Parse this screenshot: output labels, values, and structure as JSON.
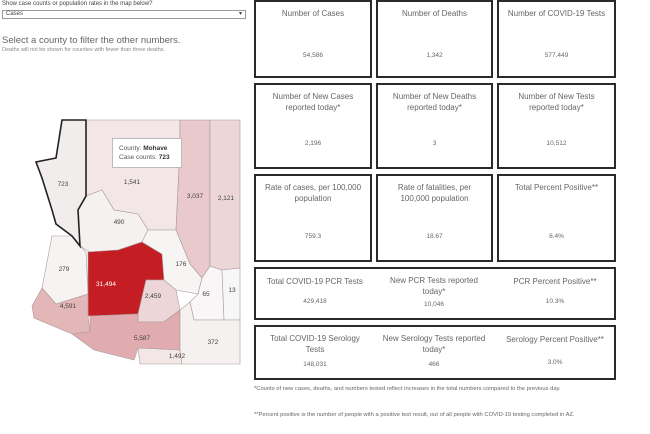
{
  "controls": {
    "filter_label": "Show case counts or population rates in the map below?",
    "dropdown_value": "Cases",
    "select_hint": "Select a county to filter the other numbers.",
    "select_note": "Deaths will not be shown for counties with fewer than three deaths."
  },
  "tooltip": {
    "county_label": "County:",
    "county_value": "Mohave",
    "cases_label": "Case counts:",
    "cases_value": "723"
  },
  "map": {
    "counties": [
      {
        "name": "Mohave",
        "value": "723",
        "color": "#f2eded"
      },
      {
        "name": "Coconino",
        "value": "1,541",
        "color": "#f3e6e6"
      },
      {
        "name": "Navajo",
        "value": "3,037",
        "color": "#e9c9cb"
      },
      {
        "name": "Apache",
        "value": "2,121",
        "color": "#ecd6d7"
      },
      {
        "name": "Yavapai",
        "value": "490",
        "color": "#f5f1f1"
      },
      {
        "name": "La Paz",
        "value": "279",
        "color": "#f7f3f3"
      },
      {
        "name": "Maricopa",
        "value": "31,494",
        "color": "#c41e24"
      },
      {
        "name": "Gila",
        "value": "176",
        "color": "#f7f4f4"
      },
      {
        "name": "Pinal",
        "value": "2,459",
        "color": "#ecd6d7"
      },
      {
        "name": "Graham",
        "value": "65",
        "color": "#f8f6f6"
      },
      {
        "name": "Greenlee",
        "value": "13",
        "color": "#f8f7f7"
      },
      {
        "name": "Yuma",
        "value": "4,591",
        "color": "#e3b6b8"
      },
      {
        "name": "Pima",
        "value": "5,587",
        "color": "#e0acaf"
      },
      {
        "name": "Santa Cruz",
        "value": "1,492",
        "color": "#f2e6e6"
      },
      {
        "name": "Cochise",
        "value": "372",
        "color": "#f6f1f1"
      }
    ]
  },
  "stats": {
    "cases": {
      "title": "Number of Cases",
      "value": "54,586"
    },
    "deaths": {
      "title": "Number of Deaths",
      "value": "1,342"
    },
    "tests": {
      "title": "Number of COVID-19 Tests",
      "value": "577,449"
    },
    "new_cases": {
      "title": "Number of New Cases reported today*",
      "value": "2,196"
    },
    "new_deaths": {
      "title": "Number of New Deaths reported today*",
      "value": "3"
    },
    "new_tests": {
      "title": "Number of New Tests reported today*",
      "value": "10,512"
    },
    "case_rate": {
      "title": "Rate of cases, per 100,000 population",
      "value": "759.3"
    },
    "fatality_rate": {
      "title": "Rate of fatalities, per 100,000 population",
      "value": "18.67"
    },
    "total_positive": {
      "title": "Total Percent Positive**",
      "value": "8.4%"
    },
    "pcr_tests": {
      "title": "Total COVID-19 PCR Tests",
      "value": "429,418"
    },
    "new_pcr": {
      "title": "New PCR Tests reported today*",
      "value": "10,046"
    },
    "pcr_positive": {
      "title": "PCR Percent Positive**",
      "value": "10.3%"
    },
    "serology_tests": {
      "title": "Total COVID-19 Serology Tests",
      "value": "148,031"
    },
    "new_serology": {
      "title": "New Serology Tests reported today*",
      "value": "466"
    },
    "serology_positive": {
      "title": "Serology Percent Positive**",
      "value": "3.0%"
    }
  },
  "footnotes": {
    "note1": "*Counts of new cases, deaths, and numbers tested reflect increases in the total numbers compared to the previous day.",
    "note2": "**Percent positive is the number of people with a positive test result, out of all people with COVID-19 testing completed in AZ."
  }
}
